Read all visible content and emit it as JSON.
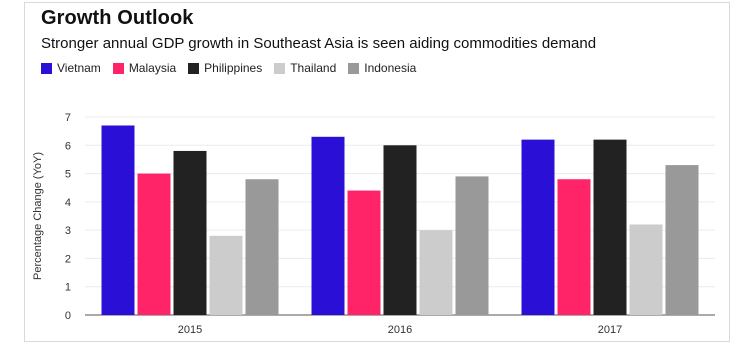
{
  "header": {
    "title": "Growth Outlook",
    "subtitle": "Stronger annual GDP growth in Southeast Asia is seen aiding commodities demand"
  },
  "colors": {
    "Vietnam": "#2a10d6",
    "Malaysia": "#ff2468",
    "Philippines": "#222222",
    "Thailand": "#cccccc",
    "Indonesia": "#999999",
    "grid": "#ececec",
    "axis": "#555555"
  },
  "chart_data": {
    "type": "bar",
    "title": "Growth Outlook",
    "subtitle": "Stronger annual GDP growth in Southeast Asia is seen aiding commodities demand",
    "xlabel": "",
    "ylabel": "Percentage Change (YoY)",
    "ylim": [
      0,
      7
    ],
    "yticks": [
      "0",
      "1",
      "2",
      "3",
      "4",
      "5",
      "6",
      "7"
    ],
    "grid": true,
    "legend_position": "top-left",
    "categories": [
      "2015",
      "2016",
      "2017"
    ],
    "series": [
      {
        "name": "Vietnam",
        "values": [
          6.7,
          6.3,
          6.2
        ]
      },
      {
        "name": "Malaysia",
        "values": [
          5.0,
          4.4,
          4.8
        ]
      },
      {
        "name": "Philippines",
        "values": [
          5.8,
          6.0,
          6.2
        ]
      },
      {
        "name": "Thailand",
        "values": [
          2.8,
          3.0,
          3.2
        ]
      },
      {
        "name": "Indonesia",
        "values": [
          4.8,
          4.9,
          5.3
        ]
      }
    ]
  }
}
